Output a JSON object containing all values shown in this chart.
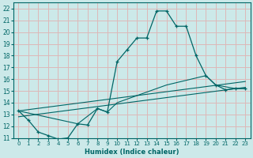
{
  "xlabel": "Humidex (Indice chaleur)",
  "xlim": [
    -0.5,
    23.5
  ],
  "ylim": [
    11,
    22.5
  ],
  "xticks": [
    0,
    1,
    2,
    3,
    4,
    5,
    6,
    7,
    8,
    9,
    10,
    11,
    12,
    13,
    14,
    15,
    16,
    17,
    18,
    19,
    20,
    21,
    22,
    23
  ],
  "yticks": [
    11,
    12,
    13,
    14,
    15,
    16,
    17,
    18,
    19,
    20,
    21,
    22
  ],
  "bg_color": "#cce9e9",
  "grid_color": "#ddb8b8",
  "line_color": "#006666",
  "series": {
    "main": {
      "x": [
        0,
        1,
        2,
        3,
        4,
        5,
        6,
        7,
        8,
        9,
        10,
        11,
        12,
        13,
        14,
        15,
        16,
        17,
        18,
        19,
        20,
        21,
        22,
        23
      ],
      "y": [
        13.3,
        12.5,
        11.5,
        11.2,
        10.9,
        11.0,
        12.2,
        12.1,
        13.5,
        13.2,
        17.5,
        18.5,
        19.5,
        19.5,
        21.8,
        21.8,
        20.5,
        20.5,
        18.0,
        16.3,
        15.5,
        15.1,
        15.2,
        15.2
      ]
    },
    "line_upper": {
      "x": [
        0,
        23
      ],
      "y": [
        13.3,
        15.8
      ]
    },
    "line_lower": {
      "x": [
        0,
        23
      ],
      "y": [
        12.8,
        15.3
      ]
    },
    "line_mid": {
      "x": [
        0,
        6,
        8,
        9,
        10,
        15,
        19,
        20,
        22,
        23
      ],
      "y": [
        13.3,
        12.2,
        13.5,
        13.2,
        14.0,
        15.5,
        16.3,
        15.5,
        15.2,
        15.2
      ]
    }
  }
}
